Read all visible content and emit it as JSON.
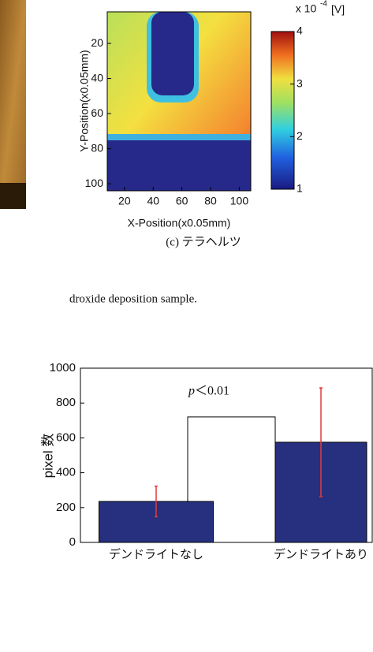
{
  "heatmap": {
    "ylabel": "Y-Position(x0.05mm)",
    "xlabel": "X-Position(x0.05mm)",
    "caption": "(c) テラヘルツ",
    "xlim": [
      8,
      108
    ],
    "xticks": [
      20,
      40,
      60,
      80,
      100
    ],
    "ylim": [
      2,
      104
    ],
    "yticks": [
      20,
      40,
      60,
      80,
      100
    ],
    "colorbar": {
      "lim": [
        1,
        4
      ],
      "ticks": [
        1,
        2,
        3,
        4
      ],
      "label_base": "x 10",
      "label_exp": "-4",
      "label_unit": "[V]"
    }
  },
  "figure_caption": "droxide deposition sample.",
  "chart_data": {
    "type": "bar",
    "categories": [
      "デンドライトなし",
      "デンドライトあり"
    ],
    "values": [
      235,
      575
    ],
    "errors": [
      88,
      312
    ],
    "color": "#27307f",
    "error_color": "#e03a3a",
    "ylim": [
      0,
      1000
    ],
    "yticks": [
      0,
      200,
      400,
      600,
      800,
      1000
    ],
    "ylabel": "pixel 数",
    "annotation_var": "p",
    "annotation": "＜0.01",
    "bracket": 720
  }
}
